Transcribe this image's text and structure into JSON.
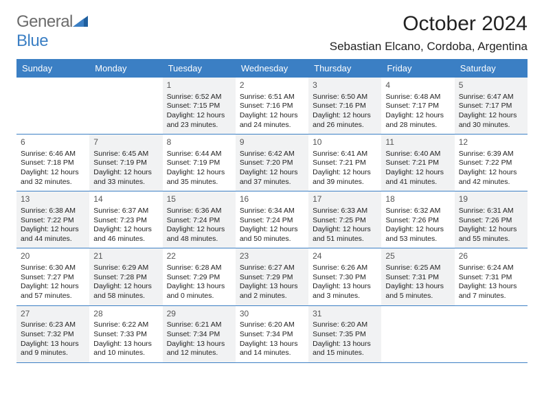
{
  "logo": {
    "text1": "General",
    "text2": "Blue"
  },
  "title": "October 2024",
  "location": "Sebastian Elcano, Cordoba, Argentina",
  "colors": {
    "header_bg": "#3b7fc4",
    "header_text": "#ffffff",
    "shaded_bg": "#f1f2f3",
    "border": "#3b7fc4",
    "text": "#222222",
    "logo_gray": "#6b6b6b",
    "logo_blue": "#3b7fc4"
  },
  "fonts": {
    "title_size": 30,
    "location_size": 17,
    "dayhead_size": 13,
    "body_size": 10.5
  },
  "day_headers": [
    "Sunday",
    "Monday",
    "Tuesday",
    "Wednesday",
    "Thursday",
    "Friday",
    "Saturday"
  ],
  "weeks": [
    [
      {
        "empty": true
      },
      {
        "empty": true
      },
      {
        "num": "1",
        "sunrise": "6:52 AM",
        "sunset": "7:15 PM",
        "daylight": "12 hours and 23 minutes.",
        "shaded": true
      },
      {
        "num": "2",
        "sunrise": "6:51 AM",
        "sunset": "7:16 PM",
        "daylight": "12 hours and 24 minutes."
      },
      {
        "num": "3",
        "sunrise": "6:50 AM",
        "sunset": "7:16 PM",
        "daylight": "12 hours and 26 minutes.",
        "shaded": true
      },
      {
        "num": "4",
        "sunrise": "6:48 AM",
        "sunset": "7:17 PM",
        "daylight": "12 hours and 28 minutes."
      },
      {
        "num": "5",
        "sunrise": "6:47 AM",
        "sunset": "7:17 PM",
        "daylight": "12 hours and 30 minutes.",
        "shaded": true
      }
    ],
    [
      {
        "num": "6",
        "sunrise": "6:46 AM",
        "sunset": "7:18 PM",
        "daylight": "12 hours and 32 minutes."
      },
      {
        "num": "7",
        "sunrise": "6:45 AM",
        "sunset": "7:19 PM",
        "daylight": "12 hours and 33 minutes.",
        "shaded": true
      },
      {
        "num": "8",
        "sunrise": "6:44 AM",
        "sunset": "7:19 PM",
        "daylight": "12 hours and 35 minutes."
      },
      {
        "num": "9",
        "sunrise": "6:42 AM",
        "sunset": "7:20 PM",
        "daylight": "12 hours and 37 minutes.",
        "shaded": true
      },
      {
        "num": "10",
        "sunrise": "6:41 AM",
        "sunset": "7:21 PM",
        "daylight": "12 hours and 39 minutes."
      },
      {
        "num": "11",
        "sunrise": "6:40 AM",
        "sunset": "7:21 PM",
        "daylight": "12 hours and 41 minutes.",
        "shaded": true
      },
      {
        "num": "12",
        "sunrise": "6:39 AM",
        "sunset": "7:22 PM",
        "daylight": "12 hours and 42 minutes."
      }
    ],
    [
      {
        "num": "13",
        "sunrise": "6:38 AM",
        "sunset": "7:22 PM",
        "daylight": "12 hours and 44 minutes.",
        "shaded": true
      },
      {
        "num": "14",
        "sunrise": "6:37 AM",
        "sunset": "7:23 PM",
        "daylight": "12 hours and 46 minutes."
      },
      {
        "num": "15",
        "sunrise": "6:36 AM",
        "sunset": "7:24 PM",
        "daylight": "12 hours and 48 minutes.",
        "shaded": true
      },
      {
        "num": "16",
        "sunrise": "6:34 AM",
        "sunset": "7:24 PM",
        "daylight": "12 hours and 50 minutes."
      },
      {
        "num": "17",
        "sunrise": "6:33 AM",
        "sunset": "7:25 PM",
        "daylight": "12 hours and 51 minutes.",
        "shaded": true
      },
      {
        "num": "18",
        "sunrise": "6:32 AM",
        "sunset": "7:26 PM",
        "daylight": "12 hours and 53 minutes."
      },
      {
        "num": "19",
        "sunrise": "6:31 AM",
        "sunset": "7:26 PM",
        "daylight": "12 hours and 55 minutes.",
        "shaded": true
      }
    ],
    [
      {
        "num": "20",
        "sunrise": "6:30 AM",
        "sunset": "7:27 PM",
        "daylight": "12 hours and 57 minutes."
      },
      {
        "num": "21",
        "sunrise": "6:29 AM",
        "sunset": "7:28 PM",
        "daylight": "12 hours and 58 minutes.",
        "shaded": true
      },
      {
        "num": "22",
        "sunrise": "6:28 AM",
        "sunset": "7:29 PM",
        "daylight": "13 hours and 0 minutes."
      },
      {
        "num": "23",
        "sunrise": "6:27 AM",
        "sunset": "7:29 PM",
        "daylight": "13 hours and 2 minutes.",
        "shaded": true
      },
      {
        "num": "24",
        "sunrise": "6:26 AM",
        "sunset": "7:30 PM",
        "daylight": "13 hours and 3 minutes."
      },
      {
        "num": "25",
        "sunrise": "6:25 AM",
        "sunset": "7:31 PM",
        "daylight": "13 hours and 5 minutes.",
        "shaded": true
      },
      {
        "num": "26",
        "sunrise": "6:24 AM",
        "sunset": "7:31 PM",
        "daylight": "13 hours and 7 minutes."
      }
    ],
    [
      {
        "num": "27",
        "sunrise": "6:23 AM",
        "sunset": "7:32 PM",
        "daylight": "13 hours and 9 minutes.",
        "shaded": true
      },
      {
        "num": "28",
        "sunrise": "6:22 AM",
        "sunset": "7:33 PM",
        "daylight": "13 hours and 10 minutes."
      },
      {
        "num": "29",
        "sunrise": "6:21 AM",
        "sunset": "7:34 PM",
        "daylight": "13 hours and 12 minutes.",
        "shaded": true
      },
      {
        "num": "30",
        "sunrise": "6:20 AM",
        "sunset": "7:34 PM",
        "daylight": "13 hours and 14 minutes."
      },
      {
        "num": "31",
        "sunrise": "6:20 AM",
        "sunset": "7:35 PM",
        "daylight": "13 hours and 15 minutes.",
        "shaded": true
      },
      {
        "empty": true
      },
      {
        "empty": true
      }
    ]
  ],
  "labels": {
    "sunrise": "Sunrise:",
    "sunset": "Sunset:",
    "daylight": "Daylight:"
  }
}
